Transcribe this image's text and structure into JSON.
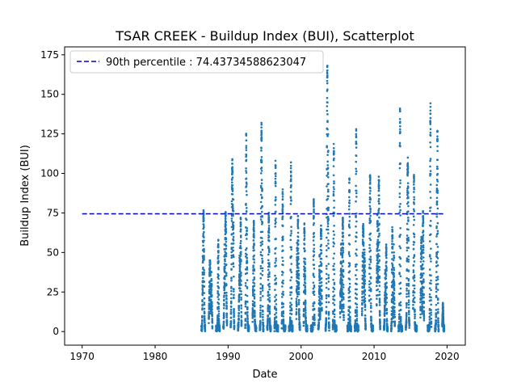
{
  "chart_data": {
    "type": "scatter",
    "title": "TSAR CREEK - Buildup Index (BUI), Scatterplot",
    "xlabel": "Date",
    "ylabel": "Buildup Index (BUI)",
    "xlim": [
      1967.6,
      2022.5
    ],
    "ylim": [
      -8.6,
      180.0
    ],
    "x_ticks": [
      1970,
      1980,
      1990,
      2000,
      2010,
      2020
    ],
    "x_tick_labels": [
      "1970",
      "1980",
      "1990",
      "2000",
      "2010",
      "2020"
    ],
    "y_ticks": [
      0,
      25,
      50,
      75,
      100,
      125,
      150,
      175
    ],
    "y_tick_labels": [
      "0",
      "25",
      "50",
      "75",
      "100",
      "125",
      "150",
      "175"
    ],
    "marker_color": "#1f77b4",
    "reference_line": {
      "label": "90th percentile : 74.43734588623047",
      "value": 74.43734588623047,
      "x_range": [
        1970,
        2019.5
      ],
      "color": "#0000cc",
      "style": "dashed"
    },
    "legend": {
      "position": "top-left"
    },
    "seasons": [
      {
        "year": 1986,
        "start": 1986.35,
        "end": 1986.85,
        "peak": 77
      },
      {
        "year": 1987,
        "start": 1987.35,
        "end": 1987.85,
        "peak": 45
      },
      {
        "year": 1988,
        "start": 1988.35,
        "end": 1988.85,
        "peak": 58
      },
      {
        "year": 1989,
        "start": 1989.35,
        "end": 1989.85,
        "peak": 76
      },
      {
        "year": 1990,
        "start": 1990.35,
        "end": 1990.85,
        "peak": 109
      },
      {
        "year": 1991,
        "start": 1991.35,
        "end": 1991.85,
        "peak": 72
      },
      {
        "year": 1992,
        "start": 1992.35,
        "end": 1992.85,
        "peak": 125
      },
      {
        "year": 1993,
        "start": 1993.35,
        "end": 1993.85,
        "peak": 70
      },
      {
        "year": 1994,
        "start": 1994.35,
        "end": 1994.85,
        "peak": 132
      },
      {
        "year": 1995,
        "start": 1995.35,
        "end": 1995.85,
        "peak": 75
      },
      {
        "year": 1996,
        "start": 1996.35,
        "end": 1996.85,
        "peak": 108
      },
      {
        "year": 1997,
        "start": 1997.35,
        "end": 1997.85,
        "peak": 90
      },
      {
        "year": 1998,
        "start": 1998.35,
        "end": 1998.85,
        "peak": 107
      },
      {
        "year": 1999,
        "start": 1999.35,
        "end": 1999.85,
        "peak": 73
      },
      {
        "year": 2000,
        "start": 2000.35,
        "end": 2000.85,
        "peak": 69
      },
      {
        "year": 2001,
        "start": 2001.35,
        "end": 2001.85,
        "peak": 84
      },
      {
        "year": 2002,
        "start": 2002.35,
        "end": 2002.85,
        "peak": 67
      },
      {
        "year": 2003,
        "start": 2003.35,
        "end": 2003.85,
        "peak": 171
      },
      {
        "year": 2004,
        "start": 2004.35,
        "end": 2004.85,
        "peak": 119
      },
      {
        "year": 2005,
        "start": 2005.35,
        "end": 2005.85,
        "peak": 72
      },
      {
        "year": 2006,
        "start": 2006.35,
        "end": 2006.85,
        "peak": 97
      },
      {
        "year": 2007,
        "start": 2007.35,
        "end": 2007.85,
        "peak": 128
      },
      {
        "year": 2008,
        "start": 2008.35,
        "end": 2008.85,
        "peak": 68
      },
      {
        "year": 2009,
        "start": 2009.35,
        "end": 2009.85,
        "peak": 100
      },
      {
        "year": 2010,
        "start": 2010.35,
        "end": 2010.85,
        "peak": 98
      },
      {
        "year": 2011,
        "start": 2011.35,
        "end": 2011.85,
        "peak": 55
      },
      {
        "year": 2012,
        "start": 2012.35,
        "end": 2012.85,
        "peak": 66
      },
      {
        "year": 2013,
        "start": 2013.35,
        "end": 2013.85,
        "peak": 141
      },
      {
        "year": 2014,
        "start": 2014.35,
        "end": 2014.85,
        "peak": 110
      },
      {
        "year": 2015,
        "start": 2015.35,
        "end": 2015.85,
        "peak": 99
      },
      {
        "year": 2016,
        "start": 2016.35,
        "end": 2016.85,
        "peak": 76
      },
      {
        "year": 2017,
        "start": 2017.35,
        "end": 2017.85,
        "peak": 145
      },
      {
        "year": 2018,
        "start": 2018.35,
        "end": 2018.85,
        "peak": 129
      },
      {
        "year": 2019,
        "start": 2019.35,
        "end": 2019.6,
        "peak": 18
      }
    ]
  }
}
